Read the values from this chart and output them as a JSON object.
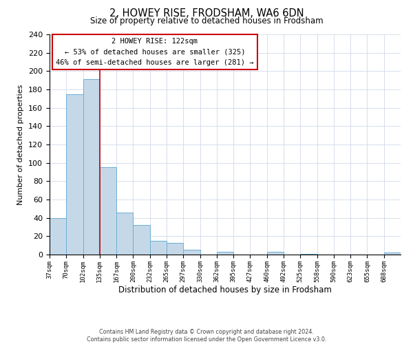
{
  "title": "2, HOWEY RISE, FRODSHAM, WA6 6DN",
  "subtitle": "Size of property relative to detached houses in Frodsham",
  "xlabel": "Distribution of detached houses by size in Frodsham",
  "ylabel": "Number of detached properties",
  "bin_labels": [
    "37sqm",
    "70sqm",
    "102sqm",
    "135sqm",
    "167sqm",
    "200sqm",
    "232sqm",
    "265sqm",
    "297sqm",
    "330sqm",
    "362sqm",
    "395sqm",
    "427sqm",
    "460sqm",
    "492sqm",
    "525sqm",
    "558sqm",
    "590sqm",
    "623sqm",
    "655sqm",
    "688sqm"
  ],
  "bar_heights": [
    40,
    175,
    191,
    95,
    46,
    32,
    15,
    13,
    5,
    0,
    3,
    0,
    0,
    3,
    0,
    1,
    0,
    0,
    0,
    0,
    2
  ],
  "bar_color": "#c5d8e8",
  "bar_edge_color": "#6aaed6",
  "vline_x": 3,
  "vline_color": "#cc0000",
  "ylim": [
    0,
    240
  ],
  "yticks": [
    0,
    20,
    40,
    60,
    80,
    100,
    120,
    140,
    160,
    180,
    200,
    220,
    240
  ],
  "annotation_title": "2 HOWEY RISE: 122sqm",
  "annotation_line1": "← 53% of detached houses are smaller (325)",
  "annotation_line2": "46% of semi-detached houses are larger (281) →",
  "annotation_box_color": "#ffffff",
  "annotation_box_edge": "#cc0000",
  "footer1": "Contains HM Land Registry data © Crown copyright and database right 2024.",
  "footer2": "Contains public sector information licensed under the Open Government Licence v3.0.",
  "background_color": "#ffffff",
  "grid_color": "#d0d8e8"
}
